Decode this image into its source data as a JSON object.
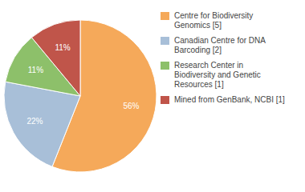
{
  "chart_data": {
    "type": "pie",
    "categories": [
      "Centre for Biodiversity\nGenomics [5]",
      "Canadian Centre for DNA\nBarcoding [2]",
      "Research Center in\nBiodiversity and Genetic\nResources [1]",
      "Mined from GenBank, NCBI [1]"
    ],
    "values": [
      56,
      22,
      11,
      11
    ],
    "value_labels": [
      "56%",
      "22%",
      "11%",
      "11%"
    ],
    "colors": [
      "#f5a95a",
      "#a8bfd8",
      "#8dc06a",
      "#c0554a"
    ],
    "data_labels": true,
    "legend": "right"
  }
}
